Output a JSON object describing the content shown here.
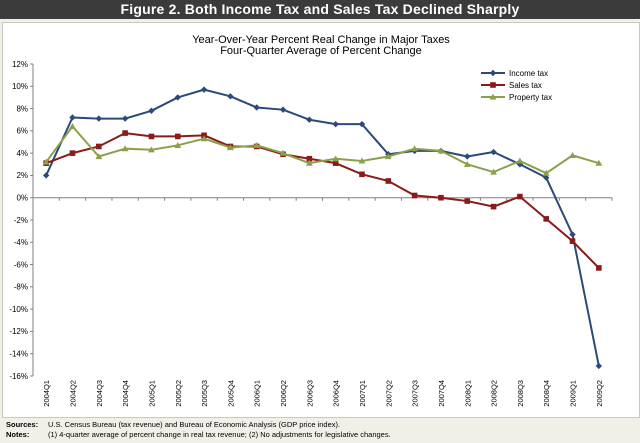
{
  "figure": {
    "banner_title": "Figure 2. Both Income Tax and Sales Tax Declined Sharply"
  },
  "chart_data": {
    "type": "line",
    "title": "Year-Over-Year Percent Real Change in Major Taxes",
    "subtitle": "Four-Quarter Average of Percent Change",
    "xlabel": "",
    "ylabel": "",
    "ylim": [
      -16,
      12
    ],
    "yticks": [
      12,
      10,
      8,
      6,
      4,
      2,
      0,
      -2,
      -4,
      -6,
      -8,
      -10,
      -12,
      -14,
      -16
    ],
    "ytick_labels": [
      "12%",
      "10%",
      "8%",
      "6%",
      "4%",
      "2%",
      "0%",
      "-2%",
      "-4%",
      "-6%",
      "-8%",
      "-10%",
      "-12%",
      "-14%",
      "-16%"
    ],
    "grid": false,
    "legend_position": "top-right",
    "categories": [
      "2004Q1",
      "2004Q2",
      "2004Q3",
      "2004Q4",
      "2005Q1",
      "2005Q2",
      "2005Q3",
      "2005Q4",
      "2006Q1",
      "2006Q2",
      "2006Q3",
      "2006Q4",
      "2007Q1",
      "2007Q2",
      "2007Q3",
      "2007Q4",
      "2008Q1",
      "2008Q2",
      "2008Q3",
      "2008Q4",
      "2009Q1",
      "2009Q2"
    ],
    "series": [
      {
        "name": "Income tax",
        "color": "#2b4a7a",
        "marker": "diamond",
        "values": [
          2.0,
          7.2,
          7.1,
          7.1,
          7.8,
          9.0,
          9.7,
          9.1,
          8.1,
          7.9,
          7.0,
          6.6,
          6.6,
          3.9,
          4.2,
          4.2,
          3.7,
          4.1,
          3.0,
          1.8,
          -3.3,
          -15.1
        ]
      },
      {
        "name": "Sales tax",
        "color": "#8b1a1a",
        "marker": "square",
        "values": [
          3.1,
          4.0,
          4.6,
          5.8,
          5.5,
          5.5,
          5.6,
          4.6,
          4.6,
          3.9,
          3.5,
          3.1,
          2.1,
          1.5,
          0.2,
          0.0,
          -0.3,
          -0.8,
          0.1,
          -1.9,
          -3.9,
          -6.3
        ]
      },
      {
        "name": "Property tax",
        "color": "#8aa04a",
        "marker": "triangle",
        "values": [
          3.2,
          6.4,
          3.7,
          4.4,
          4.3,
          4.7,
          5.3,
          4.5,
          4.7,
          4.0,
          3.1,
          3.5,
          3.3,
          3.7,
          4.4,
          4.2,
          3.0,
          2.3,
          3.3,
          2.2,
          3.8,
          3.1
        ]
      }
    ]
  },
  "footnotes": {
    "sources_label": "Sources:",
    "sources_text": "U.S. Census Bureau (tax revenue) and Bureau of Economic Analysis (GDP price index).",
    "notes_label": "Notes:",
    "notes_text": "(1) 4-quarter average of percent change in real tax revenue; (2) No adjustments for legislative changes."
  }
}
